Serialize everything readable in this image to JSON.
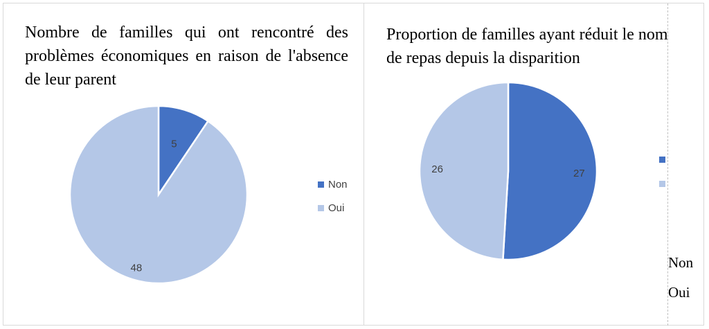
{
  "colors": {
    "non": "#4472c4",
    "oui": "#b4c7e7"
  },
  "chart_data": [
    {
      "type": "pie",
      "title": "Nombre de familles qui ont rencontré des problèmes économiques en raison de l'absence de leur parent",
      "categories": [
        "Non",
        "Oui"
      ],
      "values": [
        5,
        48
      ],
      "legend": [
        "Non",
        "Oui"
      ],
      "legend_position": "right"
    },
    {
      "type": "pie",
      "title": "Proportion de familles ayant réduit le nombre de repas depuis la disparition",
      "categories": [
        "Non",
        "Oui"
      ],
      "values": [
        27,
        26
      ],
      "legend": [
        "Non",
        "Oui"
      ],
      "legend_position": "right"
    }
  ]
}
